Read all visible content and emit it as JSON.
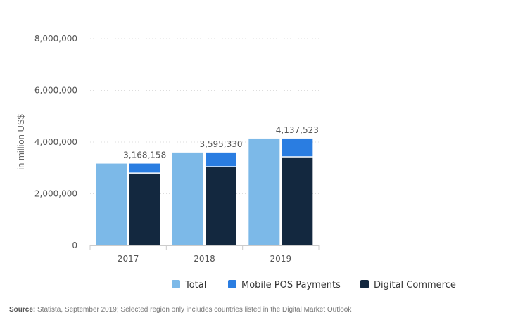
{
  "chart_data": {
    "type": "bar",
    "categories": [
      "2017",
      "2018",
      "2019"
    ],
    "series": [
      {
        "name": "Total",
        "values": [
          3168158,
          3595330,
          4137523
        ],
        "color": "#7cb9e8"
      },
      {
        "name": "Mobile POS Payments",
        "values": [
          390000,
          570000,
          730000
        ],
        "color": "#2a7de1"
      },
      {
        "name": "Digital Commerce",
        "values": [
          2778158,
          3025330,
          3407523
        ],
        "color": "#13283f"
      }
    ],
    "stacked_series": [
      "Digital Commerce",
      "Mobile POS Payments"
    ],
    "data_labels": [
      "3,168,158",
      "3,595,330",
      "4,137,523"
    ],
    "ylabel": "in million US$",
    "ylim": [
      0,
      8000000
    ],
    "yticks": [
      {
        "value": 0,
        "label": "0"
      },
      {
        "value": 2000000,
        "label": "2,000,000"
      },
      {
        "value": 4000000,
        "label": "4,000,000"
      },
      {
        "value": 6000000,
        "label": "6,000,000"
      },
      {
        "value": 8000000,
        "label": "8,000,000"
      }
    ],
    "grid": true,
    "legend_position": "bottom"
  },
  "source": {
    "label": "Source:",
    "text": " Statista, September 2019; Selected region only includes countries listed in the Digital Market Outlook"
  }
}
